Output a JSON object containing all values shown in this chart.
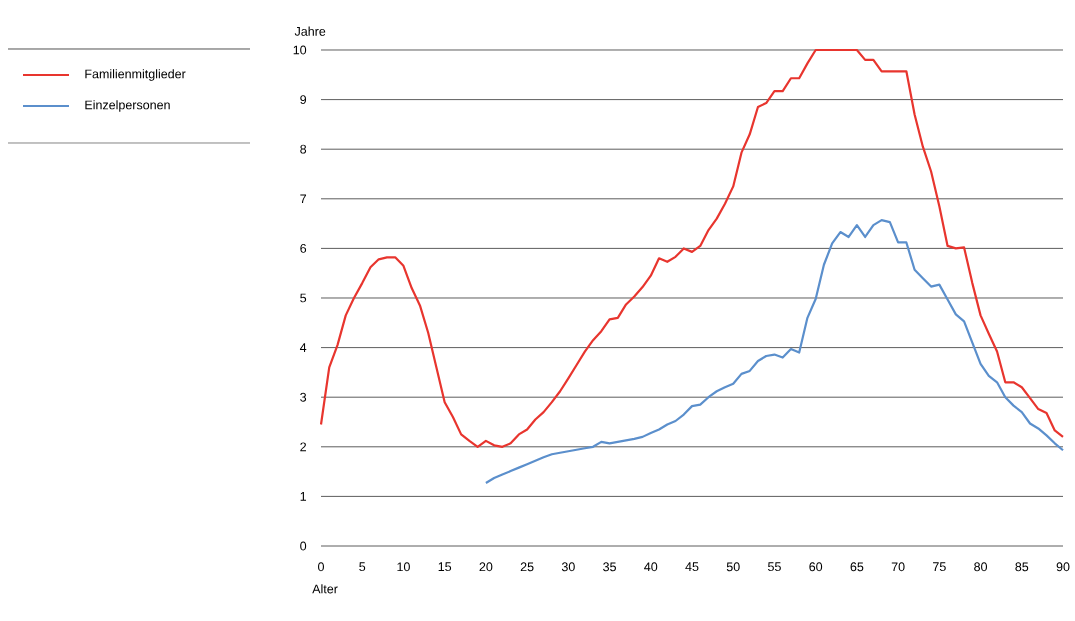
{
  "chart_data": {
    "type": "line",
    "xlabel": "Alter",
    "ylabel": "Jahre",
    "x": [
      0,
      1,
      2,
      3,
      4,
      5,
      6,
      7,
      8,
      9,
      10,
      11,
      12,
      13,
      14,
      15,
      16,
      17,
      18,
      19,
      20,
      21,
      22,
      23,
      24,
      25,
      26,
      27,
      28,
      29,
      30,
      31,
      32,
      33,
      34,
      35,
      36,
      37,
      38,
      39,
      40,
      41,
      42,
      43,
      44,
      45,
      46,
      47,
      48,
      49,
      50,
      51,
      52,
      53,
      54,
      55,
      56,
      57,
      58,
      59,
      60,
      61,
      62,
      63,
      64,
      65,
      66,
      67,
      68,
      69,
      70,
      71,
      72,
      73,
      74,
      75,
      76,
      77,
      78,
      79,
      80,
      81,
      82,
      83,
      84,
      85,
      86,
      87,
      88,
      89,
      90
    ],
    "series": [
      {
        "name": "Familienmitglieder",
        "color": "#e8352e",
        "values": [
          2.45,
          3.6,
          4.05,
          4.65,
          5.0,
          5.3,
          5.62,
          5.78,
          5.82,
          5.82,
          5.65,
          5.2,
          4.85,
          4.3,
          3.6,
          2.9,
          2.6,
          2.25,
          2.12,
          2.0,
          2.12,
          2.03,
          2.0,
          2.07,
          2.25,
          2.35,
          2.55,
          2.7,
          2.9,
          3.12,
          3.38,
          3.65,
          3.92,
          4.15,
          4.33,
          4.57,
          4.6,
          4.87,
          5.03,
          5.22,
          5.45,
          5.8,
          5.73,
          5.83,
          6.0,
          5.93,
          6.05,
          6.37,
          6.6,
          6.9,
          7.25,
          7.93,
          8.3,
          8.85,
          8.93,
          9.17,
          9.17,
          9.43,
          9.43,
          9.73,
          10.0,
          10.0,
          10.0,
          10.0,
          10.0,
          10.0,
          9.8,
          9.8,
          9.57,
          9.57,
          9.57,
          9.57,
          8.7,
          8.05,
          7.55,
          6.85,
          6.05,
          6.0,
          6.02,
          5.3,
          4.65,
          4.28,
          3.92,
          3.3,
          3.3,
          3.2,
          2.98,
          2.76,
          2.68,
          2.33,
          2.2
        ]
      },
      {
        "name": "Einzelpersonen",
        "color": "#5b8fcc",
        "values": [
          null,
          null,
          null,
          null,
          null,
          null,
          null,
          null,
          null,
          null,
          null,
          null,
          null,
          null,
          null,
          null,
          null,
          null,
          null,
          null,
          1.27,
          1.37,
          1.44,
          1.51,
          1.58,
          1.65,
          1.72,
          1.79,
          1.85,
          1.88,
          1.91,
          1.94,
          1.97,
          2.0,
          2.1,
          2.07,
          2.1,
          2.13,
          2.16,
          2.2,
          2.28,
          2.35,
          2.45,
          2.52,
          2.65,
          2.82,
          2.85,
          3.0,
          3.12,
          3.2,
          3.27,
          3.47,
          3.53,
          3.73,
          3.83,
          3.86,
          3.8,
          3.97,
          3.9,
          4.6,
          4.98,
          5.67,
          6.1,
          6.33,
          6.23,
          6.47,
          6.23,
          6.47,
          6.57,
          6.53,
          6.12,
          6.12,
          5.57,
          5.4,
          5.23,
          5.27,
          4.97,
          4.67,
          4.53,
          4.1,
          3.67,
          3.43,
          3.3,
          3.0,
          2.83,
          2.7,
          2.47,
          2.37,
          2.23,
          2.07,
          1.93
        ]
      }
    ],
    "xlim": [
      0,
      90
    ],
    "xticks": [
      0,
      5,
      10,
      15,
      20,
      25,
      30,
      35,
      40,
      45,
      50,
      55,
      60,
      65,
      70,
      75,
      80,
      85,
      90
    ],
    "ylim": [
      0,
      10
    ],
    "yticks": [
      0,
      1,
      2,
      3,
      4,
      5,
      6,
      7,
      8,
      9,
      10
    ],
    "grid": "y",
    "legend": "left",
    "line_style": "solid"
  }
}
